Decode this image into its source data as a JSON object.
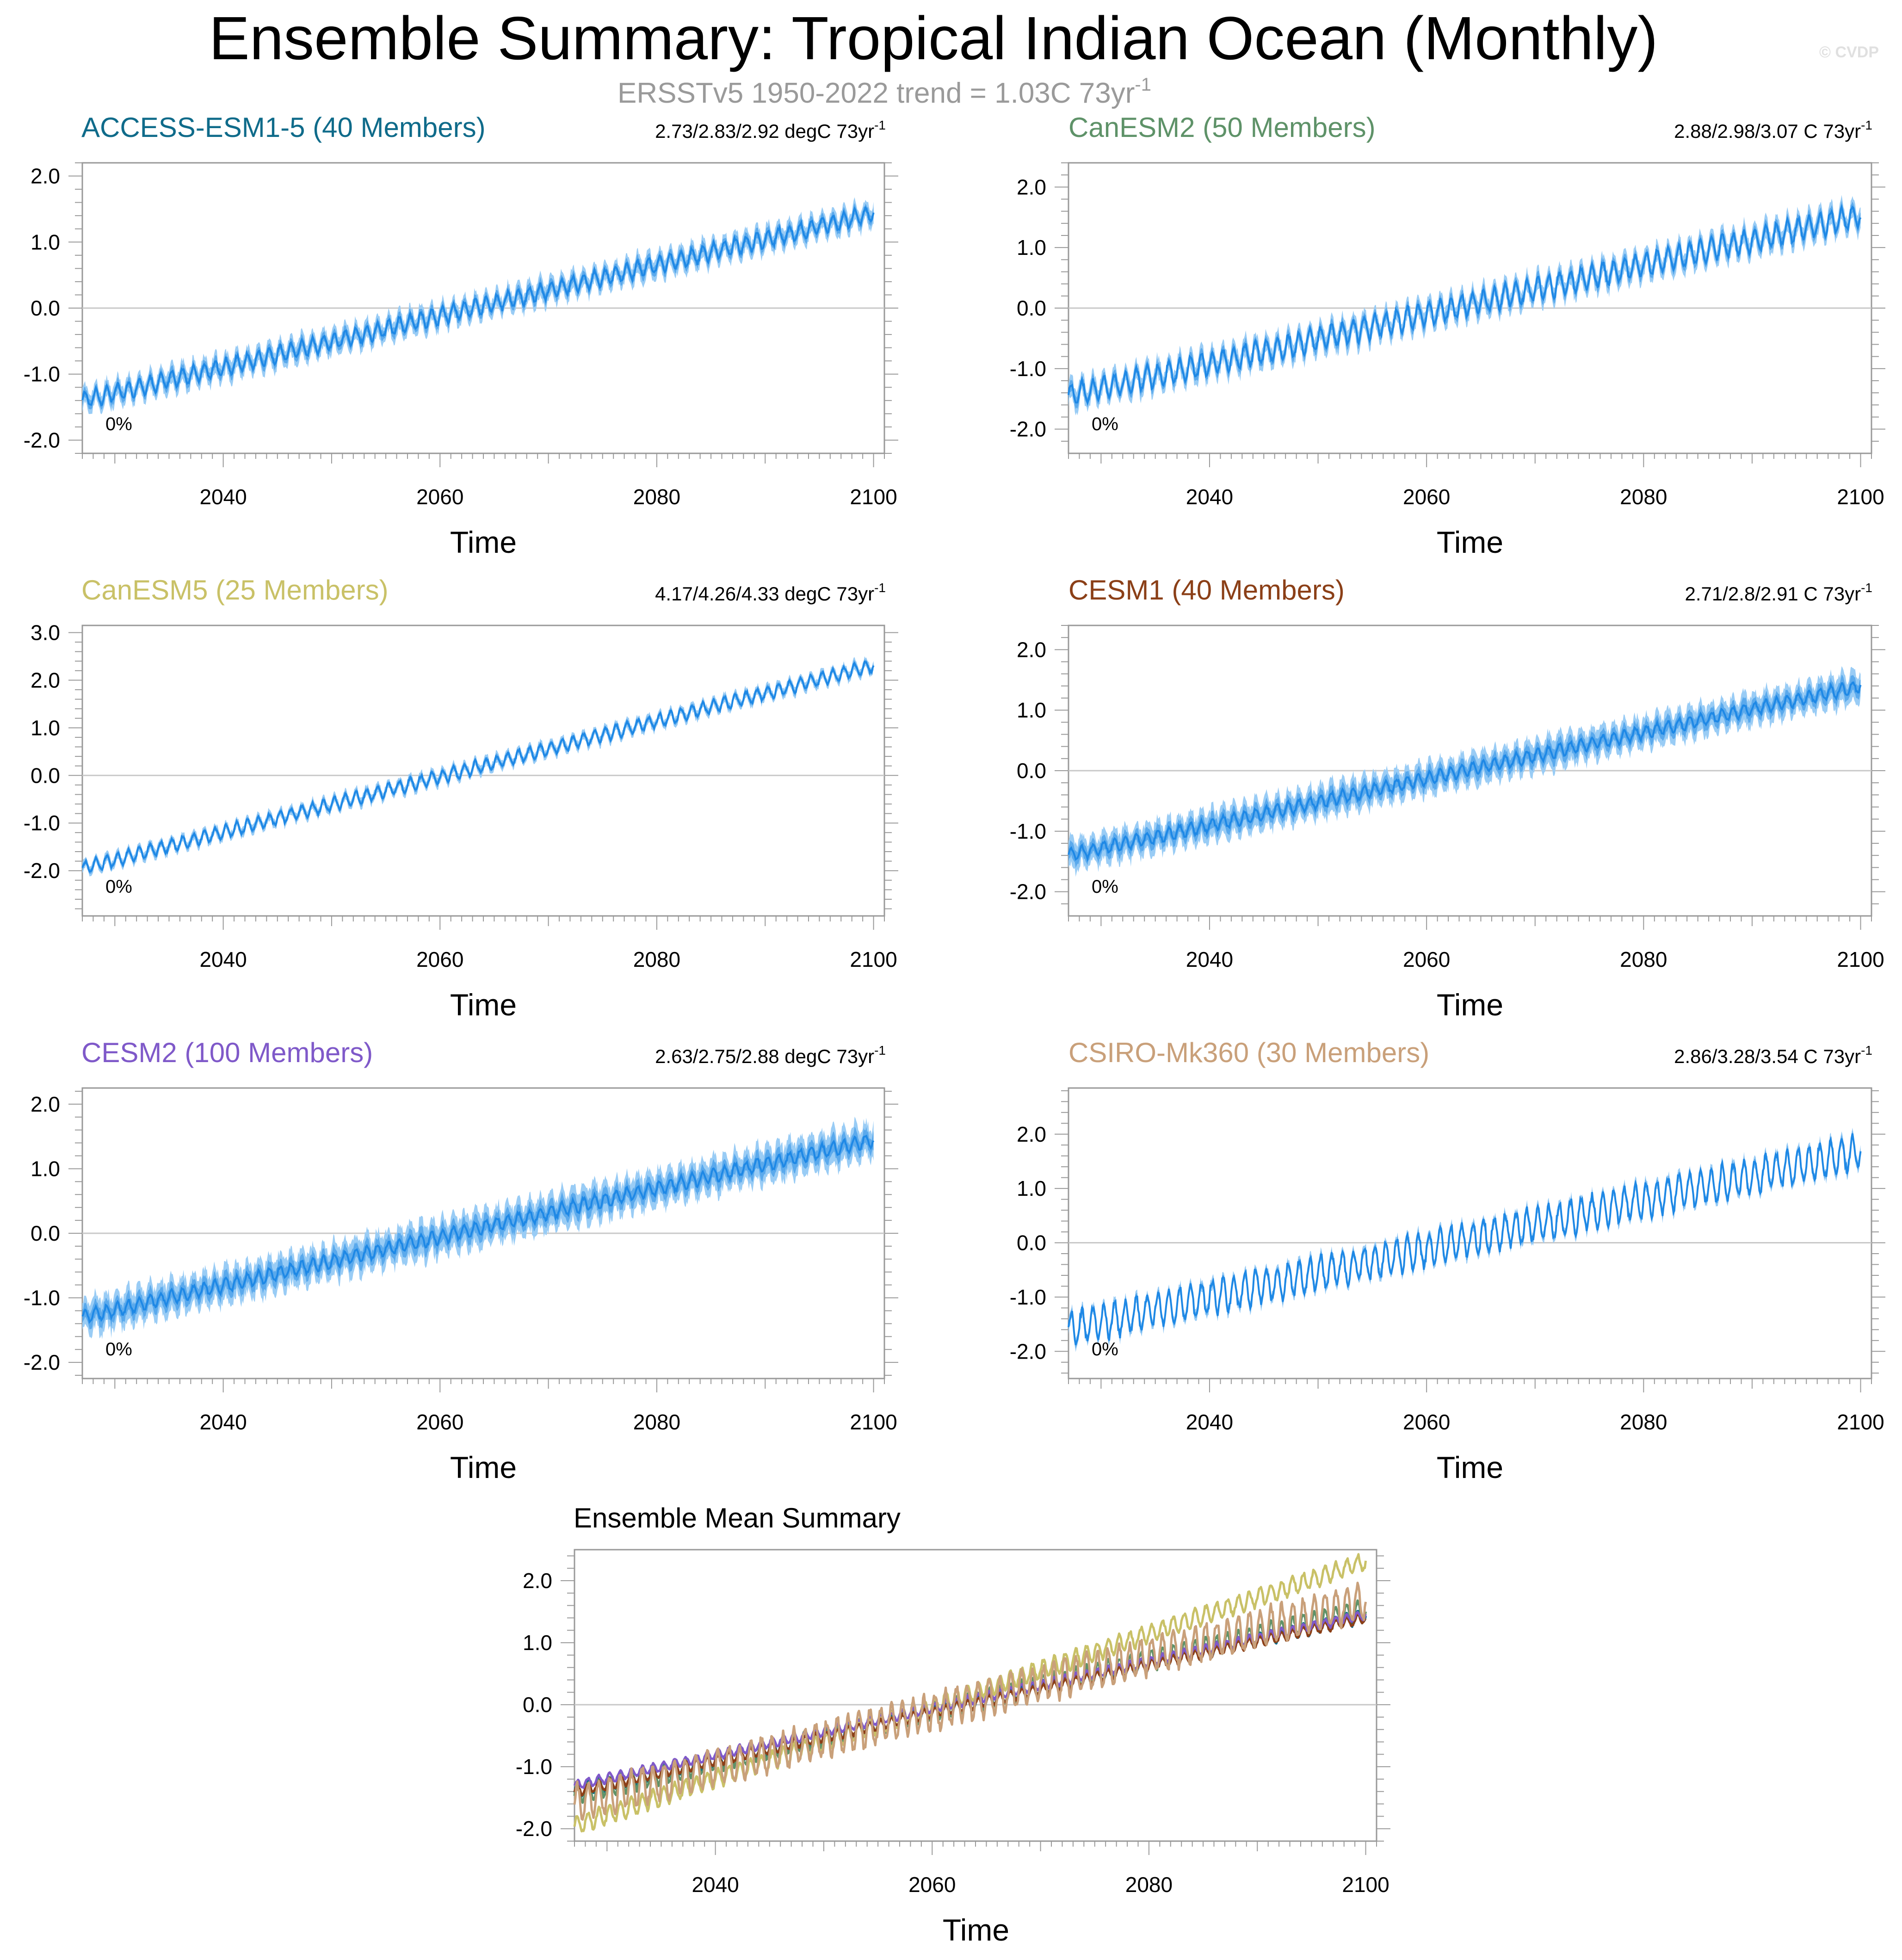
{
  "title": "Ensemble Summary: Tropical Indian Ocean (Monthly)",
  "subtitle": {
    "text": "ERSSTv5 1950-2022 trend = 1.03C 73yr",
    "superscript": "-1"
  },
  "watermark": "© CVDP",
  "colors": {
    "band_outer": "#99ccf5",
    "band_inner": "#5aa9ec",
    "mean_line": "#1e88e5",
    "zero_line": "#c8c8c8",
    "frame": "#999999",
    "tick_label": "#000000"
  },
  "axes": {
    "xlabel": "Time",
    "xticks": [
      2040,
      2060,
      2080,
      2100
    ],
    "xticks_labels": [
      "2040",
      "2060",
      "2080",
      "2100"
    ],
    "xlim": [
      2027,
      2101
    ]
  },
  "percent_label": "0%",
  "chart_data": [
    {
      "type": "line",
      "name": "ACCESS-ESM1-5 (40 Members)",
      "title": "ACCESS-ESM1-5 (40 Members)",
      "title_color": "#0f6b8a",
      "stat_text": "2.73/2.83/2.92 degC 73yr",
      "stat_sup": "-1",
      "ylim": [
        -2.2,
        2.2
      ],
      "yticks": [
        -2.0,
        -1.0,
        0.0,
        1.0,
        2.0
      ],
      "yticks_labels": [
        "-2.0",
        "-1.0",
        "0.0",
        "1.0",
        "2.0"
      ],
      "x": [
        2027,
        2100
      ],
      "y": [
        -1.4,
        1.43
      ],
      "seasonal_amplitude": 0.12,
      "spread": 0.14,
      "percent": "0%"
    },
    {
      "type": "line",
      "name": "CanESM2 (50 Members)",
      "title": "CanESM2 (50 Members)",
      "title_color": "#5e9268",
      "stat_text": "2.88/2.98/3.07 C 73yr",
      "stat_sup": "-1",
      "ylim": [
        -2.4,
        2.4
      ],
      "yticks": [
        -2.0,
        -1.0,
        0.0,
        1.0,
        2.0
      ],
      "yticks_labels": [
        "-2.0",
        "-1.0",
        "0.0",
        "1.0",
        "2.0"
      ],
      "x": [
        2027,
        2100
      ],
      "y": [
        -1.45,
        1.53
      ],
      "seasonal_amplitude": 0.18,
      "spread": 0.16,
      "percent": "0%"
    },
    {
      "type": "line",
      "name": "CanESM5 (25 Members)",
      "title": "CanESM5 (25 Members)",
      "title_color": "#c9c167",
      "stat_text": "4.17/4.26/4.33 degC 73yr",
      "stat_sup": "-1",
      "ylim": [
        -2.95,
        3.15
      ],
      "yticks": [
        -2.0,
        -1.0,
        0.0,
        1.0,
        2.0,
        3.0
      ],
      "yticks_labels": [
        "-2.0",
        "-1.0",
        "0.0",
        "1.0",
        "2.0",
        "3.0"
      ],
      "x": [
        2027,
        2100
      ],
      "y": [
        -1.95,
        2.31
      ],
      "seasonal_amplitude": 0.13,
      "spread": 0.1,
      "percent": "0%"
    },
    {
      "type": "line",
      "name": "CESM1 (40 Members)",
      "title": "CESM1 (40 Members)",
      "title_color": "#8b3f17",
      "stat_text": "2.71/2.8/2.91 C 73yr",
      "stat_sup": "-1",
      "ylim": [
        -2.4,
        2.4
      ],
      "yticks": [
        -2.0,
        -1.0,
        0.0,
        1.0,
        2.0
      ],
      "yticks_labels": [
        "-2.0",
        "-1.0",
        "0.0",
        "1.0",
        "2.0"
      ],
      "x": [
        2027,
        2100
      ],
      "y": [
        -1.4,
        1.4
      ],
      "seasonal_amplitude": 0.1,
      "spread": 0.22,
      "percent": "0%"
    },
    {
      "type": "line",
      "name": "CESM2 (100 Members)",
      "title": "CESM2 (100 Members)",
      "title_color": "#7f59c9",
      "stat_text": "2.63/2.75/2.88 degC 73yr",
      "stat_sup": "-1",
      "ylim": [
        -2.25,
        2.25
      ],
      "yticks": [
        -2.0,
        -1.0,
        0.0,
        1.0,
        2.0
      ],
      "yticks_labels": [
        "-2.0",
        "-1.0",
        "0.0",
        "1.0",
        "2.0"
      ],
      "x": [
        2027,
        2100
      ],
      "y": [
        -1.3,
        1.45
      ],
      "seasonal_amplitude": 0.1,
      "spread": 0.24,
      "percent": "0%"
    },
    {
      "type": "line",
      "name": "CSIRO-Mk360 (30 Members)",
      "title": "CSIRO-Mk360 (30 Members)",
      "title_color": "#c9a07a",
      "stat_text": "2.86/3.28/3.54 C 73yr",
      "stat_sup": "-1",
      "ylim": [
        -2.5,
        2.85
      ],
      "yticks": [
        -2.0,
        -1.0,
        0.0,
        1.0,
        2.0
      ],
      "yticks_labels": [
        "-2.0",
        "-1.0",
        "0.0",
        "1.0",
        "2.0"
      ],
      "x": [
        2027,
        2100
      ],
      "y": [
        -1.6,
        1.68
      ],
      "seasonal_amplitude": 0.3,
      "spread": 0.1,
      "percent": "0%"
    },
    {
      "type": "line",
      "name": "Ensemble Mean Summary",
      "title": "Ensemble Mean Summary",
      "xlabel": "Time",
      "ylim": [
        -2.2,
        2.5
      ],
      "yticks": [
        -2.0,
        -1.0,
        0.0,
        1.0,
        2.0
      ],
      "yticks_labels": [
        "-2.0",
        "-1.0",
        "0.0",
        "1.0",
        "2.0"
      ],
      "x": [
        2027,
        2100
      ],
      "series": [
        {
          "name": "ACCESS-ESM1-5",
          "color": "#0f6b8a",
          "values": [
            -1.4,
            1.43
          ],
          "seasonal_amplitude": 0.1
        },
        {
          "name": "CanESM2",
          "color": "#5e9268",
          "values": [
            -1.45,
            1.53
          ],
          "seasonal_amplitude": 0.15
        },
        {
          "name": "CanESM5",
          "color": "#c9c167",
          "values": [
            -1.95,
            2.31
          ],
          "seasonal_amplitude": 0.14
        },
        {
          "name": "CESM1",
          "color": "#8b3f17",
          "values": [
            -1.4,
            1.4
          ],
          "seasonal_amplitude": 0.08
        },
        {
          "name": "CESM2",
          "color": "#7f59c9",
          "values": [
            -1.3,
            1.45
          ],
          "seasonal_amplitude": 0.07
        },
        {
          "name": "CSIRO-Mk360",
          "color": "#c9a07a",
          "values": [
            -1.6,
            1.68
          ],
          "seasonal_amplitude": 0.28
        }
      ]
    }
  ]
}
